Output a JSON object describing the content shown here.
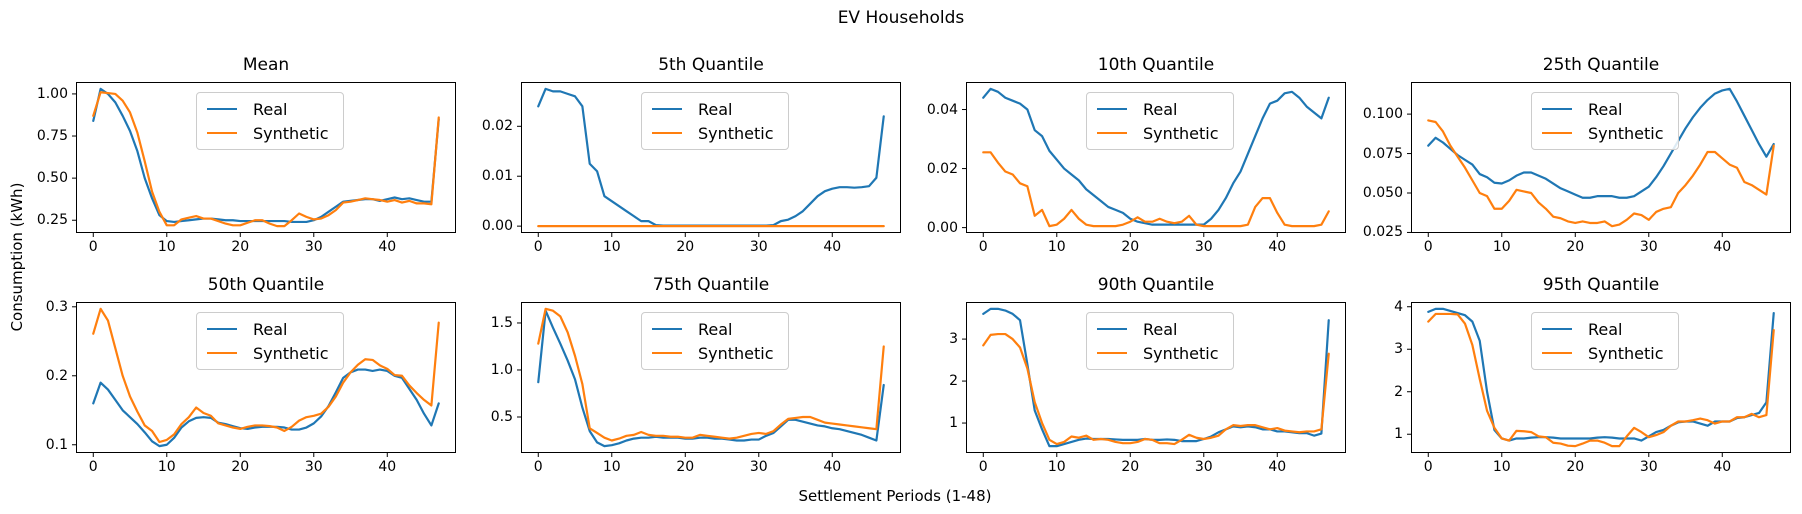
{
  "figure": {
    "suptitle": "EV Households",
    "xlabel": "Settlement Periods (1-48)",
    "ylabel": "Consumption (kWh)",
    "legend_labels": [
      "Real",
      "Synthetic"
    ],
    "colors": {
      "real": "#1f77b4",
      "synthetic": "#ff7f0e",
      "spine": "#000000",
      "legend_border": "#cccccc"
    }
  },
  "chart_data": {
    "type": "line",
    "layout": "2x4 subplot grid",
    "x_start": 0,
    "x_end": 47,
    "xticks": [
      "0",
      "10",
      "20",
      "30",
      "40"
    ],
    "legend_position": "upper center",
    "grid": false,
    "subplots": [
      {
        "title": "Mean",
        "yticks": [
          "0.25",
          "0.50",
          "0.75",
          "1.00"
        ],
        "series": [
          {
            "name": "Real",
            "values": [
              0.84,
              1.03,
              1.0,
              0.95,
              0.87,
              0.78,
              0.66,
              0.5,
              0.38,
              0.28,
              0.245,
              0.24,
              0.245,
              0.25,
              0.255,
              0.26,
              0.26,
              0.255,
              0.25,
              0.25,
              0.245,
              0.245,
              0.245,
              0.245,
              0.245,
              0.245,
              0.245,
              0.24,
              0.24,
              0.24,
              0.25,
              0.27,
              0.3,
              0.33,
              0.36,
              0.365,
              0.37,
              0.375,
              0.375,
              0.365,
              0.375,
              0.385,
              0.375,
              0.38,
              0.37,
              0.36,
              0.36,
              0.85
            ]
          },
          {
            "name": "Synthetic",
            "values": [
              0.87,
              1.01,
              1.005,
              1.0,
              0.96,
              0.89,
              0.77,
              0.6,
              0.42,
              0.3,
              0.22,
              0.22,
              0.255,
              0.265,
              0.275,
              0.26,
              0.26,
              0.245,
              0.23,
              0.22,
              0.22,
              0.235,
              0.25,
              0.25,
              0.23,
              0.215,
              0.215,
              0.25,
              0.29,
              0.27,
              0.255,
              0.26,
              0.28,
              0.31,
              0.355,
              0.36,
              0.37,
              0.38,
              0.375,
              0.37,
              0.36,
              0.37,
              0.355,
              0.365,
              0.35,
              0.35,
              0.345,
              0.86
            ]
          }
        ]
      },
      {
        "title": "5th Quantile",
        "yticks": [
          "0.00",
          "0.01",
          "0.02"
        ],
        "series": [
          {
            "name": "Real",
            "values": [
              0.024,
              0.0275,
              0.027,
              0.027,
              0.0265,
              0.026,
              0.024,
              0.0125,
              0.011,
              0.006,
              0.005,
              0.004,
              0.003,
              0.002,
              0.001,
              0.001,
              0.0002,
              0.0001,
              0.0001,
              0.0001,
              0.0001,
              0.0001,
              0.0001,
              0.0001,
              0.0001,
              0.0001,
              0.0001,
              0.0001,
              0.0001,
              0.0001,
              0.0001,
              0.0001,
              0.0002,
              0.001,
              0.0013,
              0.002,
              0.003,
              0.0045,
              0.006,
              0.007,
              0.0075,
              0.0078,
              0.0078,
              0.0077,
              0.0078,
              0.008,
              0.0097,
              0.022
            ]
          },
          {
            "name": "Synthetic",
            "values": [
              0,
              0,
              0,
              0,
              0,
              0,
              0,
              0,
              0,
              0,
              0,
              0,
              0,
              0,
              0,
              0,
              0,
              0,
              0,
              0,
              0,
              0,
              0,
              0,
              0,
              0,
              0,
              0,
              0,
              0,
              0,
              0,
              0,
              0,
              0,
              0,
              0,
              0,
              0,
              0,
              0,
              0,
              0,
              0,
              0,
              0,
              0,
              0
            ]
          }
        ]
      },
      {
        "title": "10th Quantile",
        "yticks": [
          "0.00",
          "0.02",
          "0.04"
        ],
        "series": [
          {
            "name": "Real",
            "values": [
              0.044,
              0.047,
              0.046,
              0.044,
              0.043,
              0.042,
              0.04,
              0.033,
              0.031,
              0.026,
              0.023,
              0.02,
              0.018,
              0.016,
              0.013,
              0.011,
              0.009,
              0.007,
              0.006,
              0.005,
              0.003,
              0.002,
              0.0015,
              0.001,
              0.001,
              0.001,
              0.001,
              0.001,
              0.001,
              0.001,
              0.001,
              0.003,
              0.006,
              0.01,
              0.015,
              0.019,
              0.025,
              0.031,
              0.037,
              0.042,
              0.043,
              0.0455,
              0.046,
              0.044,
              0.041,
              0.039,
              0.037,
              0.044
            ]
          },
          {
            "name": "Synthetic",
            "values": [
              0.0255,
              0.0255,
              0.022,
              0.019,
              0.018,
              0.015,
              0.014,
              0.004,
              0.006,
              0.0005,
              0.001,
              0.003,
              0.006,
              0.003,
              0.001,
              0.0005,
              0.0005,
              0.0005,
              0.0005,
              0.001,
              0.002,
              0.0035,
              0.002,
              0.002,
              0.003,
              0.002,
              0.0015,
              0.002,
              0.004,
              0.001,
              0.0005,
              0.0005,
              0.0005,
              0.0005,
              0.0005,
              0.0005,
              0.001,
              0.007,
              0.01,
              0.01,
              0.005,
              0.001,
              0.0005,
              0.0005,
              0.0005,
              0.0005,
              0.001,
              0.0055
            ]
          }
        ]
      },
      {
        "title": "25th Quantile",
        "yticks": [
          "0.025",
          "0.050",
          "0.075",
          "0.100"
        ],
        "series": [
          {
            "name": "Real",
            "values": [
              0.08,
              0.085,
              0.082,
              0.078,
              0.074,
              0.071,
              0.068,
              0.062,
              0.06,
              0.0565,
              0.056,
              0.058,
              0.061,
              0.063,
              0.063,
              0.061,
              0.059,
              0.056,
              0.053,
              0.051,
              0.049,
              0.047,
              0.047,
              0.048,
              0.048,
              0.048,
              0.047,
              0.047,
              0.048,
              0.051,
              0.054,
              0.06,
              0.067,
              0.075,
              0.083,
              0.091,
              0.098,
              0.104,
              0.109,
              0.113,
              0.115,
              0.116,
              0.108,
              0.099,
              0.09,
              0.081,
              0.073,
              0.081
            ]
          },
          {
            "name": "Synthetic",
            "values": [
              0.096,
              0.095,
              0.089,
              0.08,
              0.073,
              0.066,
              0.058,
              0.05,
              0.048,
              0.04,
              0.04,
              0.045,
              0.052,
              0.051,
              0.05,
              0.044,
              0.04,
              0.035,
              0.034,
              0.032,
              0.031,
              0.032,
              0.031,
              0.031,
              0.032,
              0.029,
              0.03,
              0.033,
              0.037,
              0.036,
              0.033,
              0.038,
              0.04,
              0.041,
              0.05,
              0.055,
              0.061,
              0.068,
              0.076,
              0.076,
              0.072,
              0.068,
              0.066,
              0.057,
              0.055,
              0.052,
              0.049,
              0.08
            ]
          }
        ]
      },
      {
        "title": "50th Quantile",
        "yticks": [
          "0.1",
          "0.2",
          "0.3"
        ],
        "series": [
          {
            "name": "Real",
            "values": [
              0.16,
              0.19,
              0.18,
              0.165,
              0.15,
              0.14,
              0.13,
              0.118,
              0.105,
              0.098,
              0.1,
              0.11,
              0.125,
              0.134,
              0.139,
              0.14,
              0.139,
              0.132,
              0.13,
              0.127,
              0.124,
              0.123,
              0.125,
              0.126,
              0.126,
              0.126,
              0.125,
              0.122,
              0.122,
              0.125,
              0.131,
              0.141,
              0.156,
              0.176,
              0.197,
              0.205,
              0.209,
              0.209,
              0.207,
              0.209,
              0.207,
              0.2,
              0.197,
              0.181,
              0.165,
              0.145,
              0.128,
              0.16
            ]
          },
          {
            "name": "Synthetic",
            "values": [
              0.261,
              0.297,
              0.28,
              0.24,
              0.2,
              0.17,
              0.148,
              0.128,
              0.12,
              0.104,
              0.107,
              0.115,
              0.13,
              0.14,
              0.154,
              0.146,
              0.142,
              0.131,
              0.128,
              0.125,
              0.123,
              0.126,
              0.128,
              0.128,
              0.127,
              0.125,
              0.12,
              0.126,
              0.135,
              0.14,
              0.142,
              0.145,
              0.155,
              0.17,
              0.19,
              0.205,
              0.216,
              0.224,
              0.223,
              0.215,
              0.21,
              0.201,
              0.2,
              0.186,
              0.175,
              0.165,
              0.157,
              0.277
            ]
          }
        ]
      },
      {
        "title": "75th Quantile",
        "yticks": [
          "0.5",
          "1.0",
          "1.5"
        ],
        "series": [
          {
            "name": "Real",
            "values": [
              0.87,
              1.63,
              1.45,
              1.28,
              1.1,
              0.9,
              0.6,
              0.35,
              0.23,
              0.19,
              0.2,
              0.22,
              0.25,
              0.27,
              0.28,
              0.28,
              0.29,
              0.28,
              0.28,
              0.28,
              0.27,
              0.27,
              0.28,
              0.28,
              0.27,
              0.27,
              0.26,
              0.25,
              0.25,
              0.26,
              0.26,
              0.3,
              0.33,
              0.4,
              0.47,
              0.47,
              0.45,
              0.43,
              0.41,
              0.4,
              0.38,
              0.37,
              0.35,
              0.33,
              0.31,
              0.28,
              0.25,
              0.84
            ]
          },
          {
            "name": "Synthetic",
            "values": [
              1.28,
              1.65,
              1.63,
              1.57,
              1.4,
              1.15,
              0.85,
              0.38,
              0.33,
              0.28,
              0.25,
              0.27,
              0.3,
              0.31,
              0.34,
              0.31,
              0.3,
              0.3,
              0.29,
              0.29,
              0.28,
              0.28,
              0.31,
              0.3,
              0.29,
              0.28,
              0.27,
              0.28,
              0.3,
              0.32,
              0.33,
              0.32,
              0.35,
              0.42,
              0.48,
              0.49,
              0.5,
              0.5,
              0.47,
              0.44,
              0.43,
              0.42,
              0.41,
              0.4,
              0.39,
              0.38,
              0.37,
              1.25
            ]
          }
        ]
      },
      {
        "title": "90th Quantile",
        "yticks": [
          "1",
          "2",
          "3"
        ],
        "series": [
          {
            "name": "Real",
            "values": [
              3.6,
              3.72,
              3.72,
              3.68,
              3.6,
              3.45,
              2.4,
              1.3,
              0.85,
              0.45,
              0.45,
              0.5,
              0.55,
              0.6,
              0.63,
              0.62,
              0.62,
              0.62,
              0.61,
              0.6,
              0.6,
              0.6,
              0.62,
              0.6,
              0.6,
              0.61,
              0.6,
              0.57,
              0.57,
              0.57,
              0.62,
              0.68,
              0.78,
              0.85,
              0.92,
              0.9,
              0.92,
              0.9,
              0.85,
              0.85,
              0.8,
              0.8,
              0.78,
              0.76,
              0.76,
              0.7,
              0.75,
              3.45
            ]
          },
          {
            "name": "Synthetic",
            "values": [
              2.85,
              3.1,
              3.12,
              3.12,
              3.0,
              2.8,
              2.3,
              1.5,
              1.0,
              0.6,
              0.5,
              0.55,
              0.68,
              0.65,
              0.7,
              0.6,
              0.62,
              0.6,
              0.55,
              0.52,
              0.52,
              0.55,
              0.62,
              0.6,
              0.52,
              0.52,
              0.5,
              0.6,
              0.72,
              0.65,
              0.62,
              0.65,
              0.7,
              0.85,
              0.95,
              0.93,
              0.95,
              0.95,
              0.9,
              0.85,
              0.88,
              0.82,
              0.8,
              0.78,
              0.8,
              0.8,
              0.85,
              2.65
            ]
          }
        ]
      },
      {
        "title": "95th Quantile",
        "yticks": [
          "1",
          "2",
          "3",
          "4"
        ],
        "series": [
          {
            "name": "Real",
            "values": [
              3.88,
              3.95,
              3.95,
              3.9,
              3.85,
              3.8,
              3.65,
              3.2,
              2.0,
              1.1,
              0.9,
              0.85,
              0.9,
              0.9,
              0.92,
              0.93,
              0.93,
              0.92,
              0.9,
              0.9,
              0.9,
              0.9,
              0.9,
              0.92,
              0.93,
              0.92,
              0.9,
              0.9,
              0.9,
              0.85,
              0.95,
              1.05,
              1.1,
              1.2,
              1.28,
              1.3,
              1.3,
              1.25,
              1.2,
              1.3,
              1.3,
              1.3,
              1.38,
              1.4,
              1.45,
              1.5,
              1.75,
              3.85
            ]
          },
          {
            "name": "Synthetic",
            "values": [
              3.65,
              3.83,
              3.83,
              3.83,
              3.82,
              3.6,
              3.1,
              2.3,
              1.55,
              1.15,
              0.9,
              0.85,
              1.08,
              1.07,
              1.05,
              0.95,
              0.93,
              0.8,
              0.78,
              0.73,
              0.72,
              0.78,
              0.85,
              0.85,
              0.8,
              0.72,
              0.72,
              0.95,
              1.15,
              1.05,
              0.93,
              0.98,
              1.05,
              1.2,
              1.3,
              1.3,
              1.33,
              1.37,
              1.33,
              1.25,
              1.3,
              1.3,
              1.4,
              1.4,
              1.48,
              1.4,
              1.45,
              3.45
            ]
          }
        ]
      }
    ]
  }
}
